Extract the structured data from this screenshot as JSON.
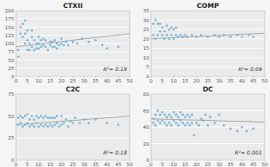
{
  "chart_data": [
    {
      "type": "scatter",
      "title": "CTXII",
      "annotation": "R²= 0.19",
      "xlim": [
        0,
        50
      ],
      "ylim": [
        0,
        200
      ],
      "xticks": [
        0,
        5,
        10,
        15,
        20,
        25,
        30,
        35,
        40,
        45,
        50
      ],
      "yticks": [
        0,
        25,
        50,
        75,
        100,
        125,
        150,
        175,
        200
      ],
      "grid": "y",
      "series": [
        {
          "type": "scatter",
          "color": "#6baed6",
          "x": [
            1,
            1,
            2,
            2,
            3,
            3,
            4,
            4,
            4,
            5,
            5,
            5,
            6,
            6,
            7,
            7,
            7,
            8,
            8,
            9,
            9,
            10,
            10,
            10,
            11,
            11,
            12,
            12,
            13,
            13,
            14,
            15,
            15,
            16,
            16,
            17,
            17,
            18,
            18,
            19,
            20,
            20,
            21,
            22,
            23,
            25,
            27,
            29,
            32,
            35,
            38,
            40,
            45
          ],
          "values": [
            60,
            80,
            130,
            150,
            120,
            160,
            100,
            130,
            170,
            80,
            110,
            140,
            80,
            100,
            90,
            120,
            140,
            80,
            110,
            85,
            100,
            85,
            100,
            120,
            90,
            110,
            95,
            115,
            90,
            110,
            80,
            95,
            105,
            90,
            105,
            90,
            110,
            85,
            100,
            95,
            100,
            115,
            95,
            105,
            95,
            105,
            100,
            115,
            105,
            110,
            95,
            85,
            90
          ]
        },
        {
          "type": "line",
          "color": "#aaaaaa",
          "x": [
            0,
            50
          ],
          "values": [
            90,
            130
          ]
        }
      ]
    },
    {
      "type": "scatter",
      "title": "COMP",
      "annotation": "R²= 0.09",
      "xlim": [
        0,
        50
      ],
      "ylim": [
        0,
        35
      ],
      "xticks": [
        0,
        5,
        10,
        15,
        20,
        25,
        30,
        35,
        40,
        45,
        50
      ],
      "yticks": [
        0,
        5,
        10,
        15,
        20,
        25,
        30,
        35
      ],
      "grid": "y",
      "series": [
        {
          "type": "scatter",
          "color": "#6baed6",
          "x": [
            1,
            1,
            2,
            2,
            3,
            3,
            4,
            4,
            5,
            5,
            6,
            6,
            7,
            7,
            8,
            8,
            9,
            9,
            10,
            10,
            11,
            11,
            12,
            13,
            14,
            15,
            16,
            18,
            20,
            22,
            25,
            28,
            30,
            32,
            35,
            38,
            40,
            43,
            45
          ],
          "values": [
            22,
            28,
            20,
            30,
            22,
            28,
            24,
            28,
            22,
            26,
            20,
            24,
            22,
            27,
            20,
            25,
            22,
            26,
            20,
            25,
            22,
            26,
            21,
            22,
            21,
            22,
            21,
            22,
            21,
            22,
            21,
            22,
            21,
            22,
            21,
            22,
            21,
            22,
            21
          ]
        },
        {
          "type": "line",
          "color": "#aaaaaa",
          "x": [
            0,
            50
          ],
          "values": [
            20,
            23
          ]
        }
      ]
    },
    {
      "type": "scatter",
      "title": "C2C",
      "annotation": "R²= 0.18",
      "xlim": [
        0,
        50
      ],
      "ylim": [
        0,
        75
      ],
      "xticks": [
        0,
        5,
        10,
        15,
        20,
        25,
        30,
        35,
        40,
        45,
        50
      ],
      "yticks": [
        0,
        25,
        50,
        75
      ],
      "grid": "y",
      "series": [
        {
          "type": "scatter",
          "color": "#6baed6",
          "x": [
            1,
            1,
            2,
            2,
            3,
            3,
            4,
            4,
            5,
            5,
            6,
            6,
            7,
            7,
            8,
            8,
            9,
            9,
            10,
            10,
            11,
            11,
            12,
            12,
            13,
            13,
            14,
            14,
            15,
            15,
            16,
            16,
            17,
            17,
            18,
            18,
            19,
            20,
            20,
            21,
            22,
            23,
            24,
            25,
            26,
            28,
            30,
            32,
            35,
            40,
            45
          ],
          "values": [
            40,
            48,
            42,
            50,
            38,
            48,
            40,
            50,
            42,
            52,
            38,
            46,
            40,
            50,
            38,
            46,
            42,
            50,
            38,
            48,
            40,
            50,
            38,
            48,
            40,
            50,
            38,
            48,
            40,
            48,
            38,
            48,
            40,
            48,
            42,
            50,
            38,
            40,
            50,
            42,
            46,
            38,
            44,
            42,
            48,
            42,
            46,
            42,
            46,
            42,
            40
          ]
        },
        {
          "type": "line",
          "color": "#aaaaaa",
          "x": [
            0,
            50
          ],
          "values": [
            40,
            50
          ]
        }
      ]
    },
    {
      "type": "scatter",
      "title": "DC",
      "annotation": "R²= 0.001",
      "xlim": [
        0,
        50
      ],
      "ylim": [
        0,
        80
      ],
      "xticks": [
        0,
        5,
        10,
        15,
        20,
        25,
        30,
        35,
        40,
        45,
        50
      ],
      "yticks": [
        0,
        20,
        40,
        60,
        80
      ],
      "grid": "y",
      "series": [
        {
          "type": "scatter",
          "color": "#6baed6",
          "x": [
            1,
            1,
            2,
            2,
            3,
            3,
            4,
            4,
            5,
            5,
            6,
            6,
            7,
            7,
            8,
            8,
            9,
            9,
            10,
            10,
            11,
            11,
            12,
            12,
            13,
            13,
            14,
            14,
            15,
            15,
            16,
            16,
            17,
            17,
            18,
            18,
            19,
            20,
            21,
            22,
            23,
            24,
            25,
            26,
            28,
            30,
            32,
            35,
            38,
            40,
            42,
            45
          ],
          "values": [
            45,
            50,
            42,
            55,
            48,
            60,
            45,
            55,
            48,
            58,
            45,
            55,
            42,
            52,
            45,
            55,
            42,
            52,
            48,
            58,
            45,
            55,
            42,
            52,
            48,
            58,
            45,
            55,
            42,
            52,
            45,
            55,
            42,
            52,
            45,
            55,
            30,
            45,
            42,
            50,
            48,
            55,
            42,
            52,
            45,
            55,
            42,
            38,
            35,
            40,
            35,
            38
          ]
        },
        {
          "type": "line",
          "color": "#aaaaaa",
          "x": [
            0,
            50
          ],
          "values": [
            50,
            46
          ]
        }
      ]
    }
  ]
}
